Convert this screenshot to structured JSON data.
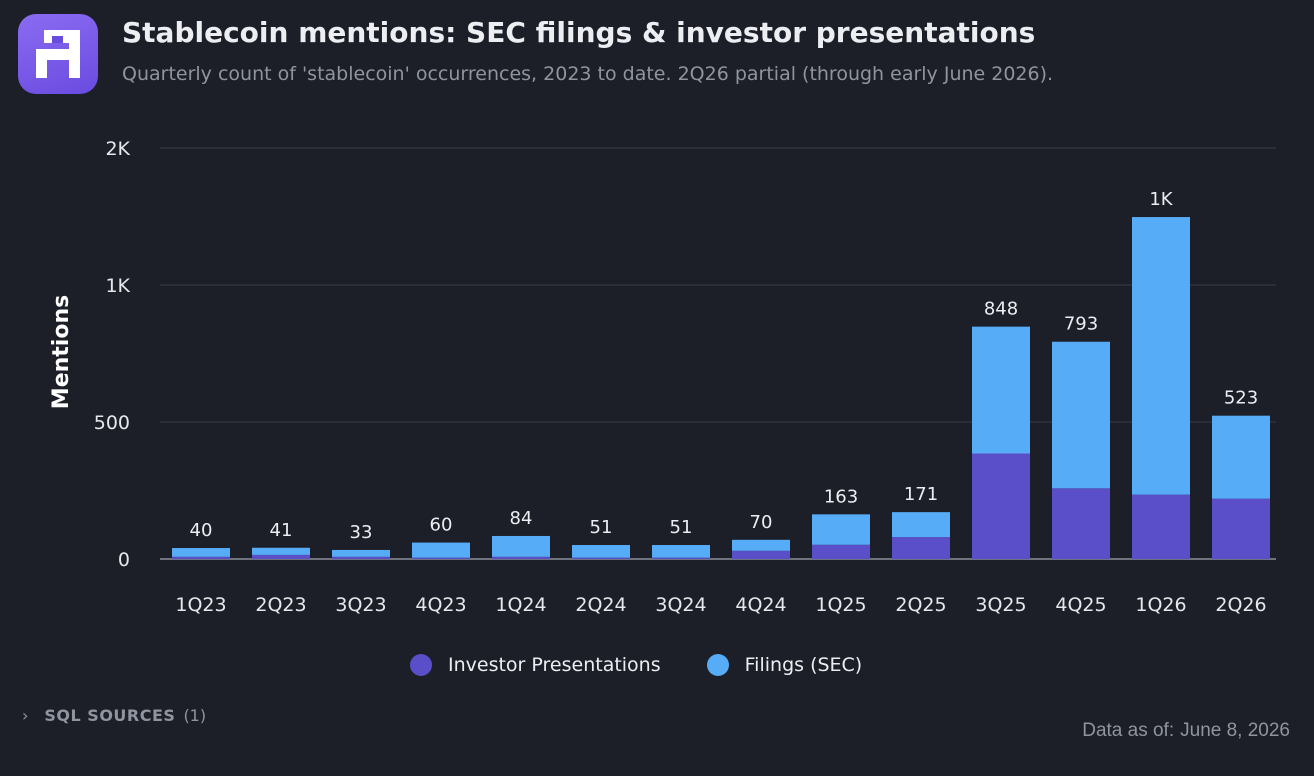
{
  "header": {
    "title": "Stablecoin mentions: SEC filings & investor presentations",
    "subtitle": "Quarterly count of 'stablecoin' occurrences, 2023 to date. 2Q26 partial (through early June 2026)."
  },
  "chart_data": {
    "type": "bar",
    "stacked": true,
    "categories": [
      "1Q23",
      "2Q23",
      "3Q23",
      "4Q23",
      "1Q24",
      "2Q24",
      "3Q24",
      "4Q24",
      "1Q25",
      "2Q25",
      "3Q25",
      "4Q25",
      "1Q26",
      "2Q26"
    ],
    "series": [
      {
        "name": "Investor Presentations",
        "color": "#5a4fc8",
        "values": [
          8,
          15,
          8,
          5,
          8,
          5,
          5,
          30,
          52,
          80,
          385,
          258,
          235,
          220
        ]
      },
      {
        "name": "Filings (SEC)",
        "color": "#57acf7",
        "values": [
          32,
          26,
          25,
          55,
          76,
          46,
          46,
          40,
          111,
          91,
          463,
          535,
          1013,
          303
        ]
      }
    ],
    "totals": [
      40,
      41,
      33,
      60,
      84,
      51,
      51,
      70,
      163,
      171,
      848,
      793,
      1248,
      523
    ],
    "total_labels": [
      "40",
      "41",
      "33",
      "60",
      "84",
      "51",
      "51",
      "70",
      "163",
      "171",
      "848",
      "793",
      "1K",
      "523"
    ],
    "ylabel": "Mentions",
    "ylim": [
      0,
      1500
    ],
    "yticks": [
      0,
      500,
      1000,
      1500
    ],
    "ytick_labels": [
      "0",
      "500",
      "1K",
      "2K"
    ],
    "grid": true,
    "legend": "bottom"
  },
  "legend": {
    "items": [
      {
        "label": "Investor Presentations",
        "color": "#5a4fc8"
      },
      {
        "label": "Filings (SEC)",
        "color": "#57acf7"
      }
    ]
  },
  "footer": {
    "sql_label": "SQL SOURCES",
    "sql_count": "(1)",
    "as_of_label": "Data as of:",
    "as_of_date": "June 8, 2026"
  }
}
